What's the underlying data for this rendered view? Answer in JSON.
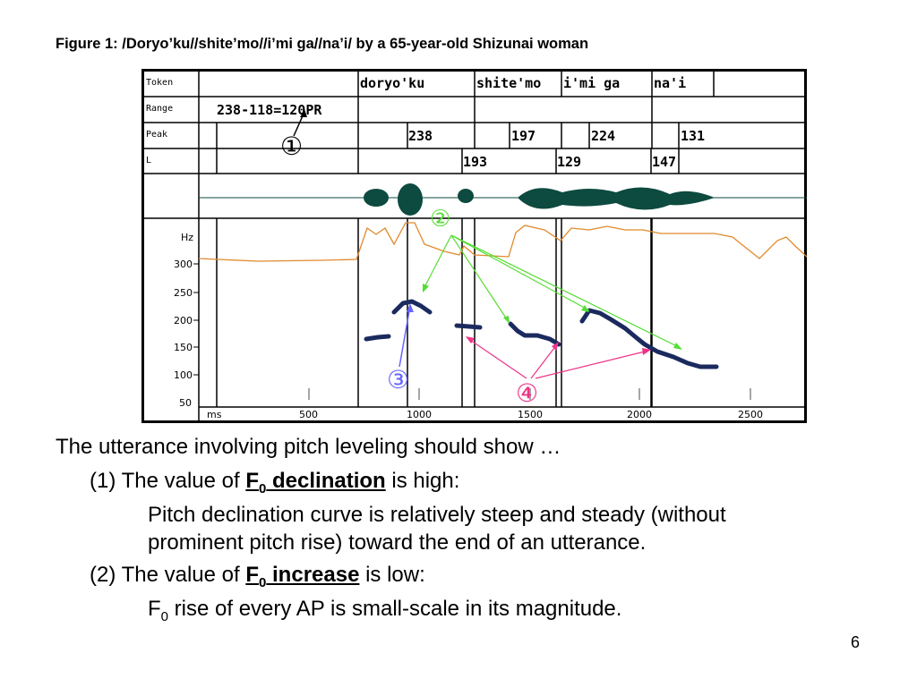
{
  "figure": {
    "title": "Figure 1: /Doryo’ku//shite’mo//i’mi ga//na’i/ by a 65-year-old Shizunai woman",
    "row_labels": [
      "Token",
      "Range",
      "Peak",
      "L"
    ],
    "tokens": [
      "doryo'ku",
      "shite'mo",
      "i'mi ga",
      "na'i"
    ],
    "range_text": "238-118=120PR",
    "peak_values": [
      "238",
      "197",
      "224",
      "131"
    ],
    "l_values": [
      "193",
      "129",
      "147"
    ],
    "hz_label": "Hz",
    "y_ticks": [
      "300",
      "250",
      "200",
      "150",
      "100",
      "50"
    ],
    "x_unit": "ms",
    "x_ticks": [
      "500",
      "1000",
      "1500",
      "2000",
      "2500"
    ],
    "markers": [
      "①",
      "②",
      "③",
      "④"
    ],
    "colors": {
      "waveform": "#0d4a3f",
      "f0_contour": "#1b2a5e",
      "orange_track": "#e08a2c",
      "green_arrows": "#55dd33",
      "pink_arrows": "#ee3388",
      "blue_marker": "#6666ff",
      "pink_marker": "#ee3388"
    }
  },
  "bullets": {
    "intro": "The utterance involving pitch leveling should show …",
    "item1_prefix": "(1) The value of ",
    "item1_term_main": "F",
    "item1_term_sub": "0",
    "item1_term_rest": " declination",
    "item1_suffix": " is high:",
    "item1_detail_line1": "Pitch declination curve is relatively steep and steady (without",
    "item1_detail_line2": "prominent pitch rise) toward the end of an utterance.",
    "item2_prefix": "(2) The value of ",
    "item2_term_main": "F",
    "item2_term_sub": "0",
    "item2_term_rest": " increase",
    "item2_suffix": " is low:",
    "item2_detail_main": "F",
    "item2_detail_sub": "0",
    "item2_detail_rest": " rise of every AP is small-scale in its magnitude."
  },
  "page_number": "6"
}
